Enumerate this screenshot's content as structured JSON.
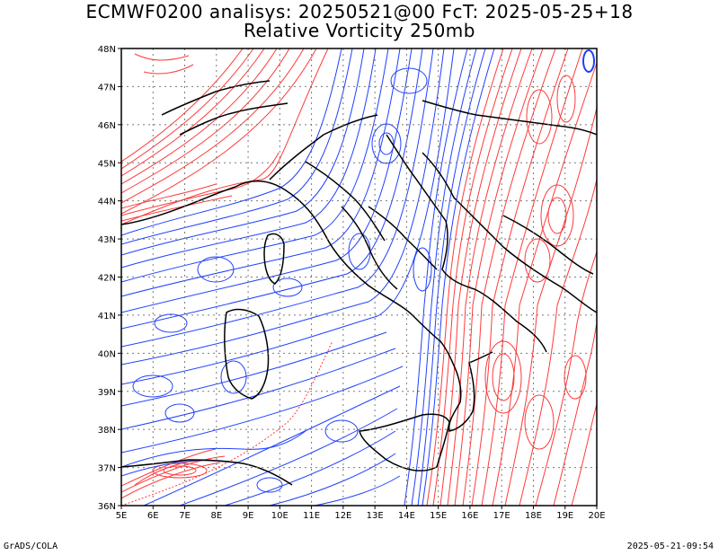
{
  "header": {
    "title_line1": "ECMWF0200 analisys: 20250521@00 FcT: 2025-05-25+18",
    "title_line2": "Relative Vorticity 250mb"
  },
  "footer": {
    "credit": "GrADS/COLA",
    "timestamp": "2025-05-21-09:54"
  },
  "map": {
    "lon_labels": [
      "5E",
      "6E",
      "7E",
      "8E",
      "9E",
      "10E",
      "11E",
      "12E",
      "13E",
      "14E",
      "15E",
      "16E",
      "17E",
      "18E",
      "19E",
      "20E"
    ],
    "lat_labels": [
      "36N",
      "37N",
      "38N",
      "39N",
      "40N",
      "41N",
      "42N",
      "43N",
      "44N",
      "45N",
      "46N",
      "47N",
      "48N"
    ],
    "lon_range": [
      5,
      20
    ],
    "lat_range": [
      36,
      48
    ],
    "colors": {
      "positive_vorticity": "#ff3030",
      "negative_vorticity": "#2040ff",
      "coastline": "#000000",
      "grid": "#888888"
    }
  }
}
